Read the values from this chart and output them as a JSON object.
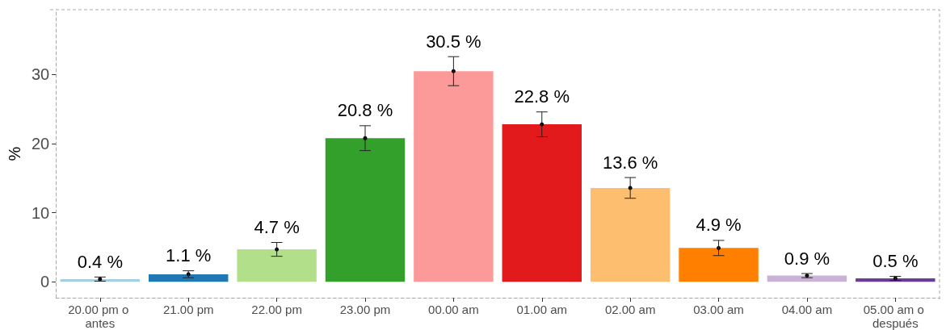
{
  "chart_data": {
    "type": "bar",
    "ylabel": "%",
    "categories": [
      "20.00 pm o antes",
      "21.00 pm",
      "22.00 pm",
      "23.00 pm",
      "00.00 am",
      "01.00 am",
      "02.00 am",
      "03.00 am",
      "04.00 am",
      "05.00 am o después"
    ],
    "values": [
      0.4,
      1.1,
      4.7,
      20.8,
      30.5,
      22.8,
      13.6,
      4.9,
      0.9,
      0.5
    ],
    "errors": [
      0.3,
      0.5,
      1.0,
      1.8,
      2.1,
      1.8,
      1.5,
      1.1,
      0.3,
      0.3
    ],
    "value_labels": [
      "0.4 %",
      "1.1 %",
      "4.7 %",
      "20.8 %",
      "30.5 %",
      "22.8 %",
      "13.6 %",
      "4.9 %",
      "0.9 %",
      "0.5 %"
    ],
    "colors": [
      "#a6cee3",
      "#1f78b4",
      "#b2df8a",
      "#33a02c",
      "#fb9a99",
      "#e31a1c",
      "#fdbf6f",
      "#ff7f00",
      "#cab2d6",
      "#6a3d9a"
    ],
    "ylim": [
      -2.3,
      39.4
    ],
    "yticks": [
      0,
      10,
      20,
      30
    ],
    "grid": false
  }
}
